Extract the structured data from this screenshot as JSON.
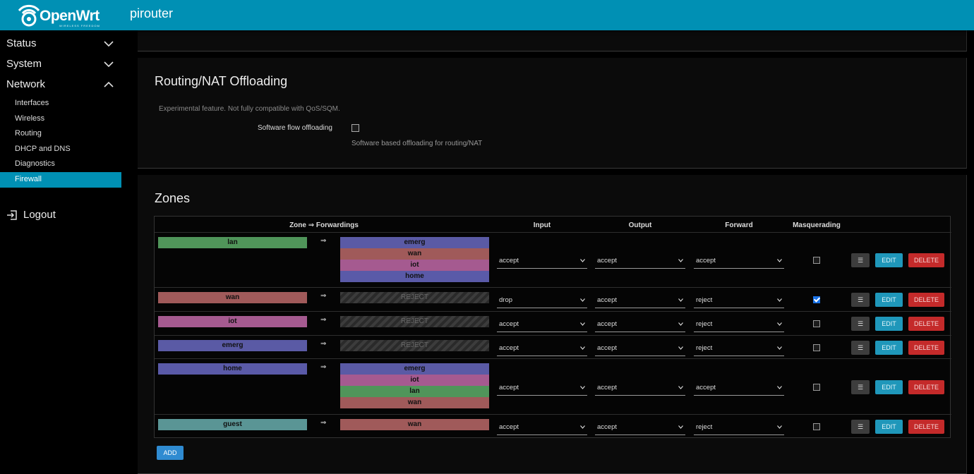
{
  "header": {
    "logo_text": "OpenWrt",
    "logo_sub": "WIRELESS FREEDOM",
    "hostname": "pirouter",
    "color": "#0090b4"
  },
  "sidebar": {
    "menus": [
      {
        "label": "Status",
        "expanded": false
      },
      {
        "label": "System",
        "expanded": false
      },
      {
        "label": "Network",
        "expanded": true
      }
    ],
    "network_items": [
      "Interfaces",
      "Wireless",
      "Routing",
      "DHCP and DNS",
      "Diagnostics",
      "Firewall"
    ],
    "active_item": "Firewall",
    "logout": "Logout"
  },
  "offloading": {
    "title": "Routing/NAT Offloading",
    "note": "Experimental feature. Not fully compatible with QoS/SQM.",
    "option_label": "Software flow offloading",
    "option_checked": false,
    "option_desc": "Software based offloading for routing/NAT"
  },
  "zones": {
    "title": "Zones",
    "headers": {
      "zone": "Zone ⇒ Forwardings",
      "input": "Input",
      "output": "Output",
      "forward": "Forward",
      "masq": "Masquerading"
    },
    "arrow": "⇒",
    "reject_label": "REJECT",
    "buttons": {
      "menu": "☰",
      "edit": "EDIT",
      "delete": "DELETE",
      "add": "ADD"
    },
    "colors": {
      "lan": "#50955a",
      "wan": "#a05a5a",
      "iot": "#a55a90",
      "emerg": "#5a5aa5",
      "home": "#5a5aa8",
      "guest": "#5a9595"
    },
    "rows": [
      {
        "zone": "lan",
        "forwards": [
          "emerg",
          "wan",
          "iot",
          "home"
        ],
        "input": "accept",
        "output": "accept",
        "forward": "accept",
        "masq": false
      },
      {
        "zone": "wan",
        "forwards": [],
        "input": "drop",
        "output": "accept",
        "forward": "reject",
        "masq": true
      },
      {
        "zone": "iot",
        "forwards": [],
        "input": "accept",
        "output": "accept",
        "forward": "reject",
        "masq": false
      },
      {
        "zone": "emerg",
        "forwards": [],
        "input": "accept",
        "output": "accept",
        "forward": "reject",
        "masq": false
      },
      {
        "zone": "home",
        "forwards": [
          "emerg",
          "iot",
          "lan",
          "wan"
        ],
        "input": "accept",
        "output": "accept",
        "forward": "accept",
        "masq": false
      },
      {
        "zone": "guest",
        "forwards": [
          "wan"
        ],
        "input": "accept",
        "output": "accept",
        "forward": "reject",
        "masq": false
      }
    ]
  }
}
